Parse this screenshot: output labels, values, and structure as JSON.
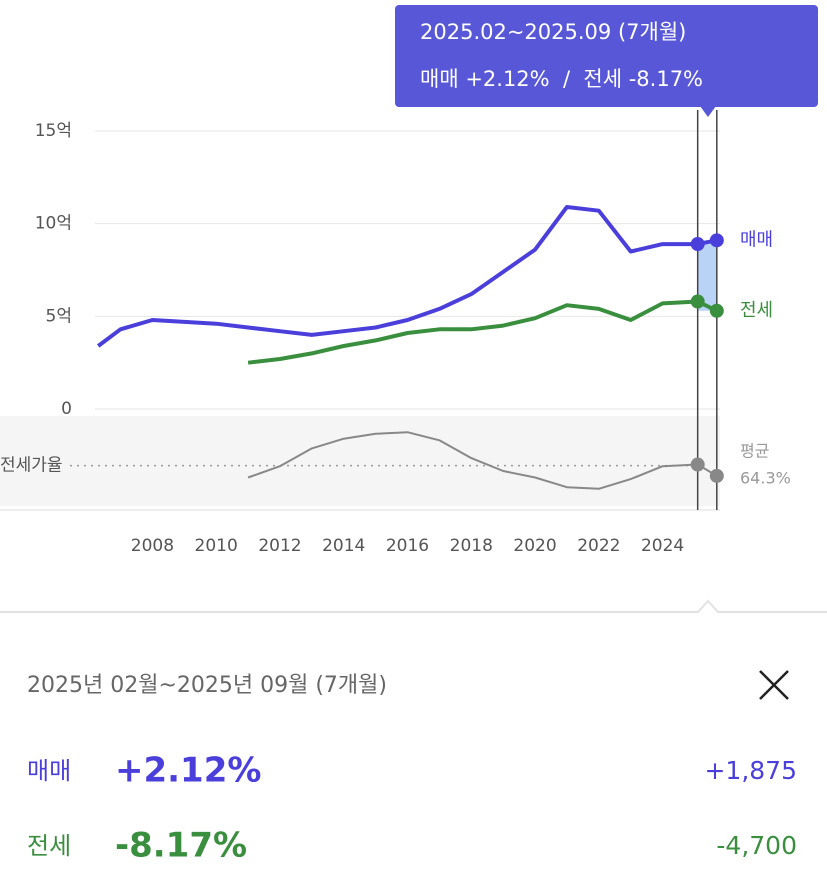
{
  "chart_data": [
    {
      "type": "line",
      "x": [
        2006.3,
        2007,
        2008,
        2009,
        2010,
        2011,
        2012,
        2013,
        2014,
        2015,
        2016,
        2017,
        2018,
        2019,
        2020,
        2021,
        2022,
        2023,
        2024,
        2025.1,
        2025.7
      ],
      "series": [
        {
          "name": "매매",
          "color": "#4b3fdc",
          "values": [
            3.4,
            4.3,
            4.8,
            4.7,
            4.6,
            4.4,
            4.2,
            4.0,
            4.2,
            4.4,
            4.8,
            5.4,
            6.2,
            7.4,
            8.6,
            10.9,
            10.7,
            8.5,
            8.9,
            8.9,
            9.1
          ]
        },
        {
          "name": "전세",
          "color": "#3a8f3f",
          "values": [
            null,
            null,
            null,
            null,
            null,
            2.5,
            2.7,
            3.0,
            3.4,
            3.7,
            4.1,
            4.3,
            4.3,
            4.5,
            4.9,
            5.6,
            5.4,
            4.8,
            5.7,
            5.8,
            5.3
          ]
        }
      ],
      "xlim": [
        2006.2,
        2025.8
      ],
      "xticks": [
        2008,
        2010,
        2012,
        2014,
        2016,
        2018,
        2020,
        2022,
        2024
      ],
      "ylim": [
        0,
        15
      ],
      "yticks": [
        0,
        {
          "value": 5,
          "label": "5억"
        },
        {
          "value": 10,
          "label": "10억"
        },
        {
          "value": 15,
          "label": "15억"
        }
      ],
      "grid": true,
      "highlight": [
        2025.1,
        2025.7
      ]
    },
    {
      "type": "line",
      "label": "전세가율",
      "x": [
        2011,
        2012,
        2013,
        2014,
        2015,
        2016,
        2017,
        2018,
        2019,
        2020,
        2021,
        2022,
        2023,
        2024,
        2025.1,
        2025.7
      ],
      "series": [
        {
          "color": "#888888",
          "values": [
            57,
            64,
            75,
            81,
            84,
            85,
            80,
            69,
            61,
            57,
            51,
            50,
            56,
            64,
            65,
            58
          ]
        }
      ],
      "xlim": [
        2006.2,
        2025.8
      ],
      "ylim": [
        40,
        95
      ],
      "average_name": "평균",
      "average": {
        "value": 64.3,
        "label": "64.3%"
      }
    }
  ],
  "tooltip": {
    "period": "2025.02~2025.09 (7개월)",
    "summary": "매매 +2.12%  /  전세 -8.17%"
  },
  "panel": {
    "period": "2025년 02월~2025년 09월 (7개월)",
    "rows": [
      {
        "change": "+2.12%",
        "amount": "+1,875"
      },
      {
        "change": "-8.17%",
        "amount": "-4,700"
      }
    ]
  }
}
